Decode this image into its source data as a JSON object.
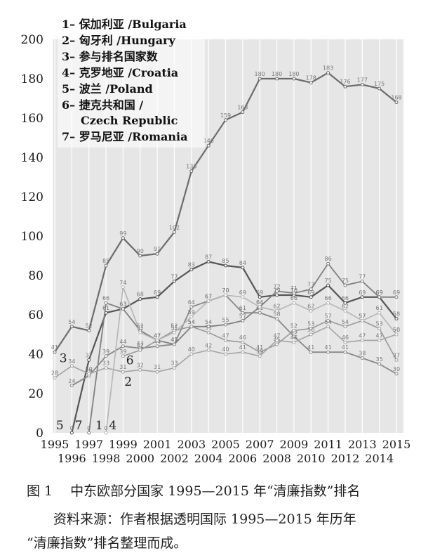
{
  "chart_data": {
    "type": "line",
    "title": "",
    "xlabel": "",
    "ylabel": "",
    "ylim": [
      0,
      200
    ],
    "y_ticks": [
      0,
      20,
      40,
      60,
      80,
      100,
      120,
      140,
      160,
      180,
      200
    ],
    "x": [
      1995,
      1996,
      1997,
      1998,
      1999,
      2000,
      2001,
      2002,
      2003,
      2004,
      2005,
      2006,
      2007,
      2008,
      2009,
      2010,
      2011,
      2012,
      2013,
      2014,
      2015
    ],
    "x_tick_labels_top": [
      "1995",
      "1997",
      "1999",
      "2001",
      "2003",
      "2005",
      "2007",
      "2009",
      "2011",
      "2013",
      "2015"
    ],
    "x_tick_labels_bottom": [
      "1996",
      "1998",
      "2000",
      "2002",
      "2004",
      "2006",
      "2008",
      "2010",
      "2012",
      "2014"
    ],
    "grid": "vertical",
    "legend_position": "top-left",
    "legend": [
      {
        "text": "1– 保加利亚 /Bulgaria"
      },
      {
        "text": "2– 匈牙利 /Hungary"
      },
      {
        "text": "3– 参与排名国家数"
      },
      {
        "text": "4– 克罗地亚 /Croatia"
      },
      {
        "text": "5– 波兰 /Poland"
      },
      {
        "text": "6– 捷克共和国 /"
      },
      {
        "text": "Czech Republic"
      },
      {
        "text": "7– 罗马尼亚 /Romania"
      }
    ],
    "series": [
      {
        "id": "3",
        "color": "#6b6b6b",
        "width": 2.2,
        "label_pos": {
          "x": 1995.5,
          "y": 38
        },
        "values": [
          41,
          54,
          52,
          85,
          99,
          90,
          91,
          102,
          133,
          146,
          159,
          163,
          180,
          180,
          180,
          178,
          183,
          176,
          177,
          175,
          168
        ]
      },
      {
        "id": "7",
        "color": "#555555",
        "width": 2.2,
        "label_pos": {
          "x": 1996.4,
          "y": 4
        },
        "values": [
          null,
          0,
          37,
          61,
          63,
          68,
          69,
          77,
          83,
          87,
          85,
          84,
          69,
          70,
          70,
          69,
          75,
          66,
          69,
          69,
          58
        ]
      },
      {
        "id": "1",
        "color": "#808080",
        "width": 1.8,
        "label_pos": {
          "x": 1997.6,
          "y": 4
        },
        "values": [
          null,
          null,
          0,
          66,
          63,
          52,
          47,
          45,
          54,
          54,
          55,
          57,
          64,
          72,
          71,
          73,
          86,
          75,
          77,
          69,
          69
        ]
      },
      {
        "id": "5",
        "color": "#888888",
        "width": 1.8,
        "label_pos": {
          "x": 1995.3,
          "y": 4
        },
        "values": [
          null,
          24,
          29,
          39,
          44,
          43,
          44,
          45,
          64,
          67,
          70,
          61,
          61,
          58,
          49,
          41,
          41,
          41,
          38,
          35,
          30
        ]
      },
      {
        "id": "6",
        "color": "#999999",
        "width": 1.6,
        "label_pos": {
          "x": 1999.4,
          "y": 37
        },
        "values": [
          null,
          null,
          null,
          null,
          39,
          42,
          47,
          52,
          54,
          51,
          47,
          46,
          41,
          45,
          52,
          53,
          57,
          54,
          57,
          53,
          37
        ]
      },
      {
        "id": "2",
        "color": "#a3a3a3",
        "width": 1.6,
        "label_pos": {
          "x": 1999.3,
          "y": 26
        },
        "values": [
          28,
          34,
          30,
          33,
          31,
          32,
          31,
          33,
          40,
          42,
          40,
          41,
          39,
          47,
          46,
          50,
          54,
          46,
          47,
          47,
          50
        ]
      },
      {
        "id": "4",
        "color": "#b5b5b5",
        "width": 1.6,
        "label_pos": {
          "x": 1998.4,
          "y": 4
        },
        "values": [
          null,
          null,
          null,
          0,
          74,
          51,
          47,
          51,
          59,
          67,
          70,
          69,
          64,
          62,
          66,
          62,
          66,
          62,
          57,
          61,
          50
        ]
      }
    ]
  },
  "caption": {
    "title": "图 1　 中东欧部分国家 1995—2015 年“清廉指数”排名",
    "source_line1": "资料来源：作者根据透明国际 1995—2015 年历年",
    "source_line2": "“清廉指数”排名整理而成。"
  }
}
